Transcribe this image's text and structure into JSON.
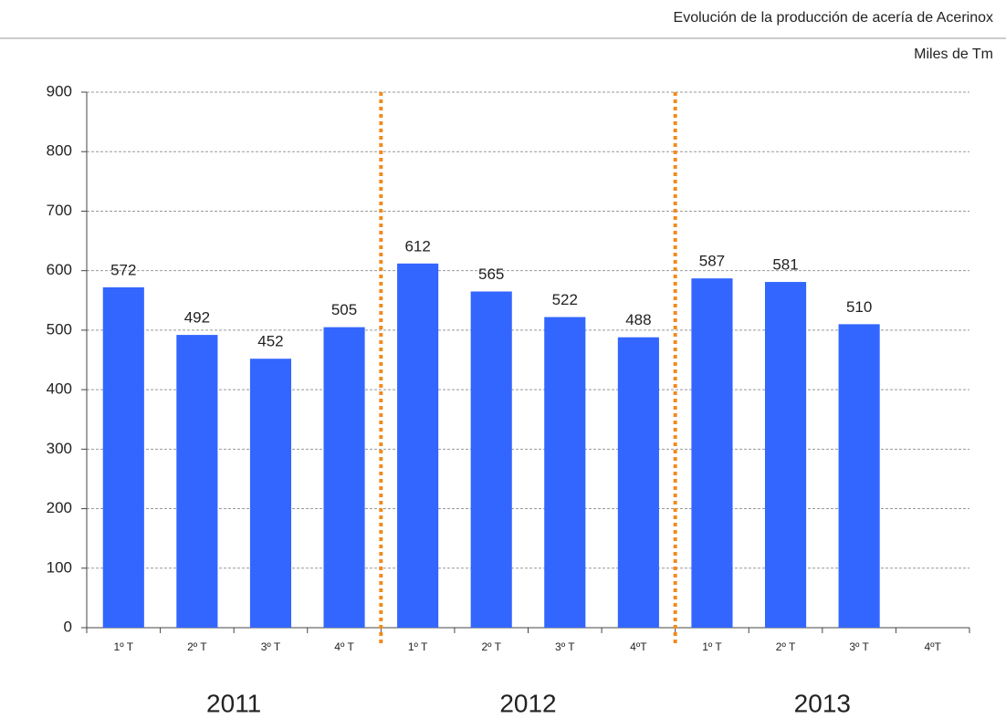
{
  "chart_data": {
    "type": "bar",
    "title": "Evolución de la producción de acería de Acerinox",
    "subtitle": "Miles de Tm",
    "categories": [
      "1º T",
      "2º T",
      "3º T",
      "4º T",
      "1º T",
      "2º T",
      "3º T",
      "4ºT",
      "1º T",
      "2º T",
      "3º T",
      "4ºT"
    ],
    "values": [
      572,
      492,
      452,
      505,
      612,
      565,
      522,
      488,
      587,
      581,
      510,
      null
    ],
    "groups": [
      "2011",
      "2012",
      "2013"
    ],
    "color": "#3366ff",
    "ylim": [
      0,
      900
    ],
    "yticks": [
      0,
      100,
      200,
      300,
      400,
      500,
      600,
      700,
      800,
      900
    ],
    "grid": true
  }
}
